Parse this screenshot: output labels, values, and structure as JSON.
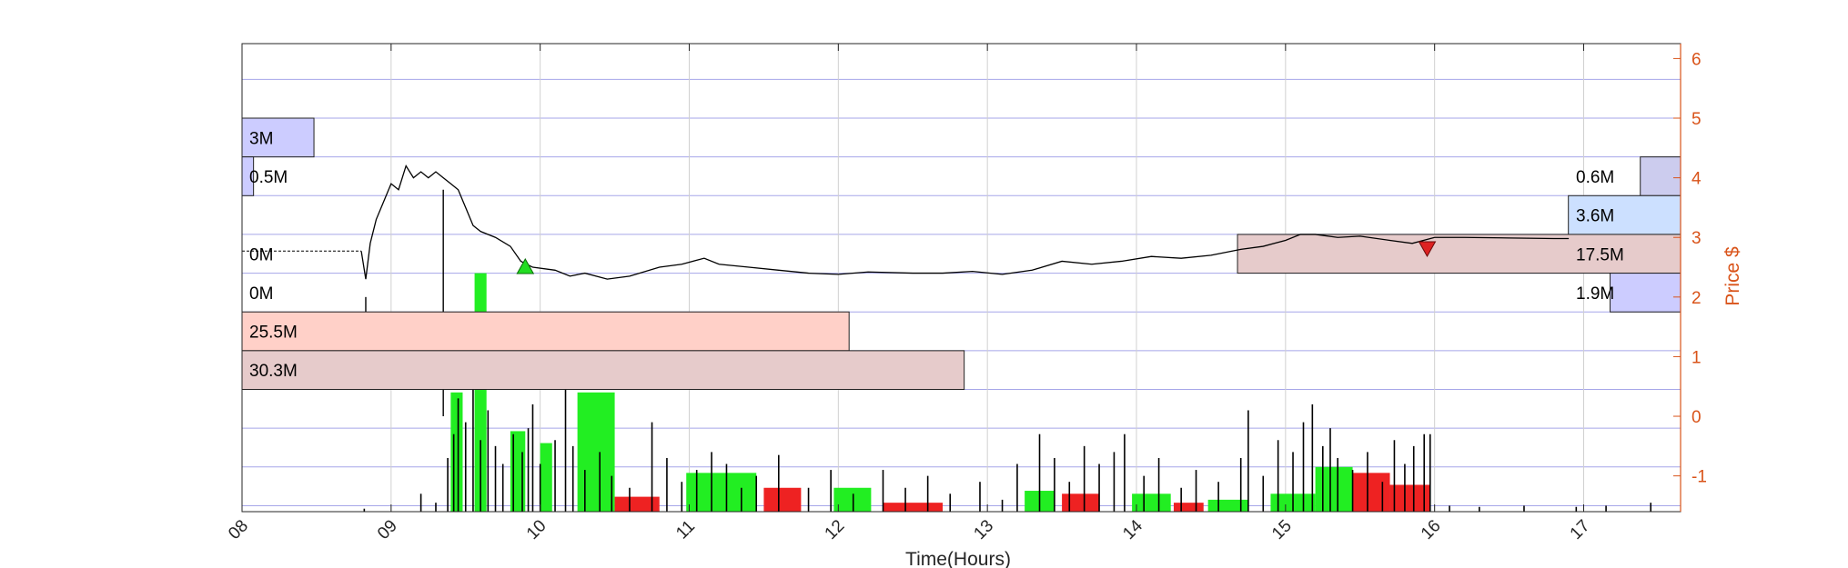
{
  "chart_data": {
    "type": "line",
    "title": "",
    "xlabel": "Time(Hours)",
    "ylabel": "Price $",
    "xlim": [
      8.0,
      17.65
    ],
    "ylim": [
      -1.6,
      6.25
    ],
    "x_ticks": [
      "08",
      "09",
      "10",
      "11",
      "12",
      "13",
      "14",
      "15",
      "16",
      "17"
    ],
    "y_ticks": [
      "-1",
      "0",
      "1",
      "2",
      "3",
      "4",
      "5",
      "6"
    ],
    "grid": true,
    "colors": {
      "axis_right": "#d95319",
      "price_line": "#000000",
      "grid_h": "#8080e0",
      "buy_volume": "#22ee22",
      "sell_volume": "#ee2222",
      "buy_marker": "#22dd22",
      "sell_marker": "#dd2222"
    },
    "price_series": [
      [
        8.0,
        2.77
      ],
      [
        8.2,
        2.77
      ],
      [
        8.5,
        2.77
      ],
      [
        8.8,
        2.77
      ],
      [
        8.83,
        2.3
      ],
      [
        8.86,
        2.9
      ],
      [
        8.9,
        3.3
      ],
      [
        8.95,
        3.6
      ],
      [
        9.0,
        3.9
      ],
      [
        9.05,
        3.8
      ],
      [
        9.1,
        4.2
      ],
      [
        9.15,
        4.0
      ],
      [
        9.2,
        4.1
      ],
      [
        9.25,
        4.0
      ],
      [
        9.3,
        4.1
      ],
      [
        9.35,
        4.0
      ],
      [
        9.4,
        3.9
      ],
      [
        9.45,
        3.8
      ],
      [
        9.5,
        3.5
      ],
      [
        9.55,
        3.2
      ],
      [
        9.6,
        3.1
      ],
      [
        9.7,
        3.0
      ],
      [
        9.8,
        2.85
      ],
      [
        9.87,
        2.6
      ],
      [
        9.95,
        2.5
      ],
      [
        10.1,
        2.45
      ],
      [
        10.2,
        2.35
      ],
      [
        10.3,
        2.4
      ],
      [
        10.45,
        2.3
      ],
      [
        10.6,
        2.35
      ],
      [
        10.8,
        2.5
      ],
      [
        10.95,
        2.55
      ],
      [
        11.1,
        2.65
      ],
      [
        11.2,
        2.55
      ],
      [
        11.4,
        2.5
      ],
      [
        11.6,
        2.45
      ],
      [
        11.8,
        2.4
      ],
      [
        12.0,
        2.38
      ],
      [
        12.2,
        2.42
      ],
      [
        12.5,
        2.4
      ],
      [
        12.7,
        2.4
      ],
      [
        12.9,
        2.43
      ],
      [
        13.1,
        2.38
      ],
      [
        13.3,
        2.45
      ],
      [
        13.5,
        2.6
      ],
      [
        13.7,
        2.55
      ],
      [
        13.9,
        2.6
      ],
      [
        14.1,
        2.68
      ],
      [
        14.3,
        2.65
      ],
      [
        14.5,
        2.7
      ],
      [
        14.7,
        2.8
      ],
      [
        14.85,
        2.85
      ],
      [
        15.0,
        2.95
      ],
      [
        15.1,
        3.05
      ],
      [
        15.2,
        3.05
      ],
      [
        15.35,
        3.0
      ],
      [
        15.5,
        3.02
      ],
      [
        15.7,
        2.95
      ],
      [
        15.85,
        2.9
      ],
      [
        16.0,
        3.0
      ],
      [
        16.2,
        3.0
      ],
      [
        16.5,
        2.99
      ],
      [
        16.8,
        2.98
      ],
      [
        16.9,
        2.98
      ]
    ],
    "signals": [
      {
        "type": "buy",
        "x": 9.9,
        "y": 2.5
      },
      {
        "type": "sell",
        "x": 15.95,
        "y": 2.82
      }
    ],
    "volume_profile": [
      {
        "label": "3M",
        "price_lo": 4.35,
        "price_hi": 5.0,
        "fraction": 0.05,
        "side": "left",
        "fill": "#ccccff"
      },
      {
        "label": "0.5M",
        "price_lo": 3.7,
        "price_hi": 4.35,
        "fraction": 0.008,
        "side": "left",
        "fill": "#ccccff"
      },
      {
        "label": "0M",
        "price_lo": 2.4,
        "price_hi": 3.05,
        "fraction": 0.0,
        "side": "left",
        "fill": "#ffffff"
      },
      {
        "label": "0M",
        "price_lo": 1.75,
        "price_hi": 2.4,
        "fraction": 0.0,
        "side": "left",
        "fill": "#ffffff"
      },
      {
        "label": "25.5M",
        "price_lo": 1.1,
        "price_hi": 1.75,
        "fraction": 0.422,
        "side": "left",
        "fill": "#ffd0c8"
      },
      {
        "label": "30.3M",
        "price_lo": 0.45,
        "price_hi": 1.1,
        "fraction": 0.502,
        "side": "left",
        "fill": "#e6cbcb"
      },
      {
        "label": "0.6M",
        "price_lo": 3.7,
        "price_hi": 4.35,
        "fraction": 0.028,
        "side": "right",
        "fill": "#ccccee"
      },
      {
        "label": "3.6M",
        "price_lo": 3.05,
        "price_hi": 3.7,
        "fraction": 0.078,
        "side": "right",
        "fill": "#cce0ff"
      },
      {
        "label": "17.5M",
        "price_lo": 2.4,
        "price_hi": 3.05,
        "fraction": 0.308,
        "side": "right",
        "fill": "#e6cbcb"
      },
      {
        "label": "1.9M",
        "price_lo": 1.75,
        "price_hi": 2.4,
        "fraction": 0.049,
        "side": "right",
        "fill": "#ccccff"
      }
    ],
    "volume_blocks": [
      {
        "x0": 9.4,
        "x1": 9.48,
        "top": 0.4,
        "side": "buy"
      },
      {
        "x0": 9.56,
        "x1": 9.64,
        "top": 2.4,
        "side": "buy"
      },
      {
        "x0": 9.8,
        "x1": 9.9,
        "top": -0.25,
        "side": "buy"
      },
      {
        "x0": 10.0,
        "x1": 10.08,
        "top": -0.45,
        "side": "buy"
      },
      {
        "x0": 10.25,
        "x1": 10.5,
        "top": 0.4,
        "side": "buy"
      },
      {
        "x0": 10.5,
        "x1": 10.8,
        "top": -1.35,
        "side": "sell"
      },
      {
        "x0": 10.98,
        "x1": 11.45,
        "top": -0.95,
        "side": "buy"
      },
      {
        "x0": 11.5,
        "x1": 11.75,
        "top": -1.2,
        "side": "sell"
      },
      {
        "x0": 11.97,
        "x1": 12.22,
        "top": -1.2,
        "side": "buy"
      },
      {
        "x0": 12.3,
        "x1": 12.7,
        "top": -1.45,
        "side": "sell"
      },
      {
        "x0": 13.25,
        "x1": 13.45,
        "top": -1.25,
        "side": "buy"
      },
      {
        "x0": 13.5,
        "x1": 13.75,
        "top": -1.3,
        "side": "sell"
      },
      {
        "x0": 13.97,
        "x1": 14.23,
        "top": -1.3,
        "side": "buy"
      },
      {
        "x0": 14.25,
        "x1": 14.45,
        "top": -1.45,
        "side": "sell"
      },
      {
        "x0": 14.48,
        "x1": 14.75,
        "top": -1.4,
        "side": "buy"
      },
      {
        "x0": 14.9,
        "x1": 15.2,
        "top": -1.3,
        "side": "buy"
      },
      {
        "x0": 15.2,
        "x1": 15.45,
        "top": -0.85,
        "side": "buy"
      },
      {
        "x0": 15.45,
        "x1": 15.7,
        "top": -0.95,
        "side": "sell"
      },
      {
        "x0": 15.7,
        "x1": 15.97,
        "top": -1.15,
        "side": "sell"
      }
    ],
    "volume_spikes": [
      [
        8.82,
        -1.55
      ],
      [
        9.2,
        -1.3
      ],
      [
        9.3,
        -1.45
      ],
      [
        9.38,
        -0.7
      ],
      [
        9.42,
        -0.3
      ],
      [
        9.45,
        0.3
      ],
      [
        9.5,
        -0.1
      ],
      [
        9.55,
        0.5
      ],
      [
        9.6,
        -0.4
      ],
      [
        9.65,
        0.1
      ],
      [
        9.7,
        -0.5
      ],
      [
        9.75,
        -0.8
      ],
      [
        9.82,
        -0.3
      ],
      [
        9.88,
        -0.6
      ],
      [
        9.92,
        -0.2
      ],
      [
        9.95,
        0.2
      ],
      [
        10.0,
        -0.8
      ],
      [
        10.1,
        -0.4
      ],
      [
        10.17,
        0.45
      ],
      [
        10.22,
        -0.5
      ],
      [
        10.3,
        -0.9
      ],
      [
        10.4,
        -0.6
      ],
      [
        10.48,
        -1.0
      ],
      [
        10.6,
        -1.2
      ],
      [
        10.75,
        -0.1
      ],
      [
        10.85,
        -0.7
      ],
      [
        10.95,
        -1.1
      ],
      [
        11.05,
        -0.9
      ],
      [
        11.15,
        -0.6
      ],
      [
        11.25,
        -0.8
      ],
      [
        11.35,
        -1.2
      ],
      [
        11.45,
        -1.0
      ],
      [
        11.6,
        -0.65
      ],
      [
        11.8,
        -1.2
      ],
      [
        11.95,
        -0.9
      ],
      [
        12.1,
        -1.3
      ],
      [
        12.3,
        -0.9
      ],
      [
        12.45,
        -1.2
      ],
      [
        12.6,
        -1.0
      ],
      [
        12.75,
        -1.3
      ],
      [
        12.95,
        -1.1
      ],
      [
        13.1,
        -1.4
      ],
      [
        13.2,
        -0.8
      ],
      [
        13.35,
        -0.3
      ],
      [
        13.45,
        -0.7
      ],
      [
        13.55,
        -1.1
      ],
      [
        13.65,
        -0.5
      ],
      [
        13.75,
        -0.8
      ],
      [
        13.85,
        -0.6
      ],
      [
        13.92,
        -0.3
      ],
      [
        14.05,
        -1.0
      ],
      [
        14.15,
        -0.7
      ],
      [
        14.3,
        -1.2
      ],
      [
        14.4,
        -0.9
      ],
      [
        14.55,
        -1.1
      ],
      [
        14.7,
        -0.7
      ],
      [
        14.75,
        0.1
      ],
      [
        14.85,
        -1.0
      ],
      [
        14.95,
        -0.4
      ],
      [
        15.05,
        -0.6
      ],
      [
        15.12,
        -0.1
      ],
      [
        15.18,
        0.2
      ],
      [
        15.25,
        -0.5
      ],
      [
        15.3,
        -0.2
      ],
      [
        15.35,
        -0.7
      ],
      [
        15.45,
        -0.9
      ],
      [
        15.55,
        -0.6
      ],
      [
        15.65,
        -1.1
      ],
      [
        15.73,
        -0.4
      ],
      [
        15.8,
        -0.8
      ],
      [
        15.86,
        -0.5
      ],
      [
        15.93,
        -0.3
      ],
      [
        15.97,
        -0.3
      ],
      [
        16.1,
        -1.5
      ],
      [
        16.3,
        -1.52
      ],
      [
        16.6,
        -1.5
      ],
      [
        16.95,
        -1.52
      ],
      [
        17.15,
        -1.5
      ],
      [
        17.45,
        -1.45
      ]
    ],
    "spike_lines": [
      [
        9.35,
        0.0,
        3.8
      ],
      [
        8.83,
        1.6,
        2.0
      ]
    ]
  }
}
